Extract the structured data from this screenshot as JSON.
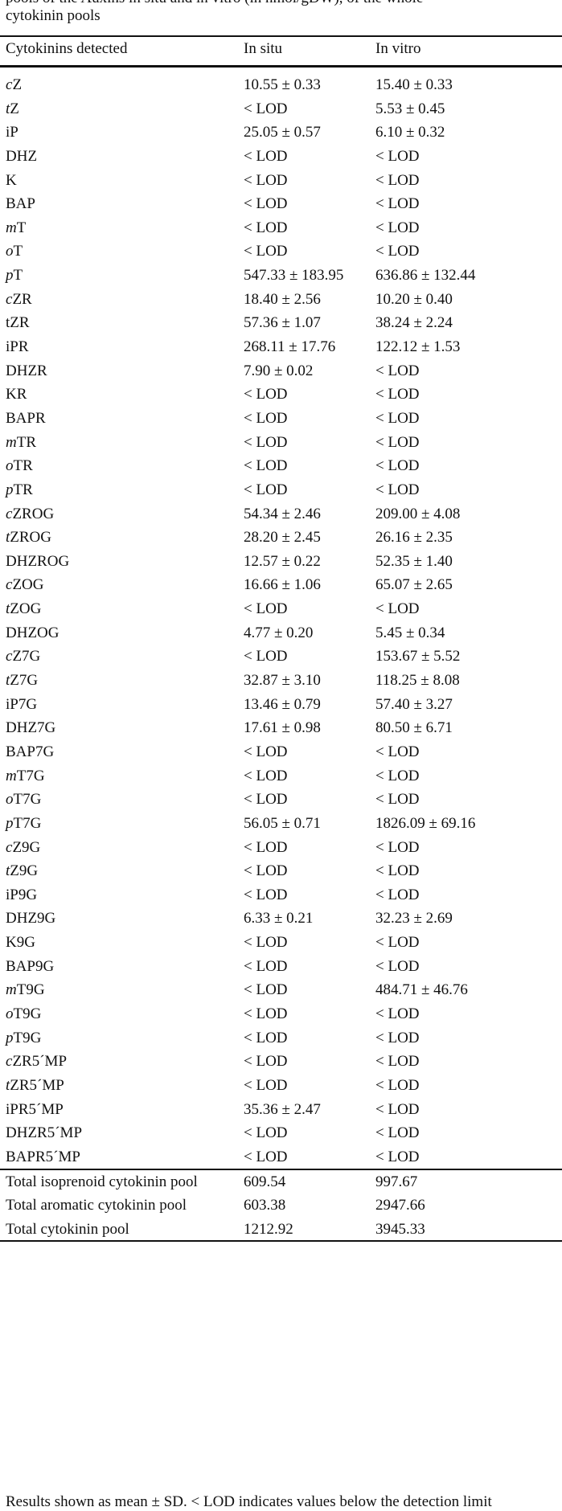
{
  "caption": {
    "line1": "pools of the Auxins in situ and in vitro (in nmol/gDW), of the whole",
    "line2": "cytokinin pools"
  },
  "headers": {
    "compound": "Cytokinins detected",
    "in_situ": "In situ",
    "in_vitro": "In vitro"
  },
  "rows": [
    {
      "prefix": "c",
      "name": "Z",
      "in_situ": "10.55 ± 0.33",
      "in_vitro": "15.40 ± 0.33"
    },
    {
      "prefix": "t",
      "name": "Z",
      "in_situ": "< LOD",
      "in_vitro": "5.53 ± 0.45"
    },
    {
      "prefix": "",
      "name": "iP",
      "in_situ": "25.05 ± 0.57",
      "in_vitro": "6.10 ± 0.32"
    },
    {
      "prefix": "",
      "name": "DHZ",
      "in_situ": "< LOD",
      "in_vitro": "< LOD"
    },
    {
      "prefix": "",
      "name": "K",
      "in_situ": "< LOD",
      "in_vitro": "< LOD"
    },
    {
      "prefix": "",
      "name": "BAP",
      "in_situ": "< LOD",
      "in_vitro": "< LOD"
    },
    {
      "prefix": "m",
      "name": "T",
      "in_situ": "< LOD",
      "in_vitro": "< LOD"
    },
    {
      "prefix": "o",
      "name": "T",
      "in_situ": "< LOD",
      "in_vitro": "< LOD"
    },
    {
      "prefix": "p",
      "name": "T",
      "in_situ": "547.33 ± 183.95",
      "in_vitro": "636.86 ± 132.44"
    },
    {
      "prefix": "c",
      "name": "ZR",
      "in_situ": "18.40 ± 2.56",
      "in_vitro": "10.20 ± 0.40"
    },
    {
      "prefix": "",
      "name": "tZR",
      "in_situ": "57.36 ± 1.07",
      "in_vitro": "38.24 ± 2.24"
    },
    {
      "prefix": "",
      "name": "iPR",
      "in_situ": "268.11 ± 17.76",
      "in_vitro": "122.12 ± 1.53"
    },
    {
      "prefix": "",
      "name": "DHZR",
      "in_situ": "7.90 ± 0.02",
      "in_vitro": "< LOD"
    },
    {
      "prefix": "",
      "name": "KR",
      "in_situ": "< LOD",
      "in_vitro": "< LOD"
    },
    {
      "prefix": "",
      "name": "BAPR",
      "in_situ": "< LOD",
      "in_vitro": "< LOD"
    },
    {
      "prefix": "m",
      "name": "TR",
      "in_situ": "< LOD",
      "in_vitro": "< LOD"
    },
    {
      "prefix": "o",
      "name": "TR",
      "in_situ": "< LOD",
      "in_vitro": "< LOD"
    },
    {
      "prefix": "p",
      "name": "TR",
      "in_situ": "< LOD",
      "in_vitro": "< LOD"
    },
    {
      "prefix": "c",
      "name": "ZROG",
      "in_situ": "54.34 ± 2.46",
      "in_vitro": "209.00 ± 4.08"
    },
    {
      "prefix": "t",
      "name": "ZROG",
      "in_situ": "28.20 ± 2.45",
      "in_vitro": "26.16 ± 2.35"
    },
    {
      "prefix": "",
      "name": "DHZROG",
      "in_situ": "12.57 ± 0.22",
      "in_vitro": "52.35 ± 1.40"
    },
    {
      "prefix": "c",
      "name": "ZOG",
      "in_situ": "16.66 ± 1.06",
      "in_vitro": "65.07 ± 2.65"
    },
    {
      "prefix": "t",
      "name": "ZOG",
      "in_situ": "< LOD",
      "in_vitro": "< LOD"
    },
    {
      "prefix": "",
      "name": "DHZOG",
      "in_situ": "4.77 ± 0.20",
      "in_vitro": "5.45 ± 0.34"
    },
    {
      "prefix": "c",
      "name": "Z7G",
      "in_situ": "< LOD",
      "in_vitro": "153.67 ± 5.52"
    },
    {
      "prefix": "t",
      "name": "Z7G",
      "in_situ": "32.87 ± 3.10",
      "in_vitro": "118.25 ± 8.08"
    },
    {
      "prefix": "",
      "name": "iP7G",
      "in_situ": "13.46 ± 0.79",
      "in_vitro": "57.40 ± 3.27"
    },
    {
      "prefix": "",
      "name": "DHZ7G",
      "in_situ": "17.61 ± 0.98",
      "in_vitro": "80.50 ± 6.71"
    },
    {
      "prefix": "",
      "name": "BAP7G",
      "in_situ": "< LOD",
      "in_vitro": "< LOD"
    },
    {
      "prefix": "m",
      "name": "T7G",
      "in_situ": "< LOD",
      "in_vitro": "< LOD"
    },
    {
      "prefix": "o",
      "name": "T7G",
      "in_situ": "< LOD",
      "in_vitro": "< LOD"
    },
    {
      "prefix": "p",
      "name": "T7G",
      "in_situ": "56.05 ± 0.71",
      "in_vitro": "1826.09 ± 69.16"
    },
    {
      "prefix": "c",
      "name": "Z9G",
      "in_situ": "< LOD",
      "in_vitro": "< LOD"
    },
    {
      "prefix": "t",
      "name": "Z9G",
      "in_situ": "< LOD",
      "in_vitro": "< LOD"
    },
    {
      "prefix": "",
      "name": "iP9G",
      "in_situ": "< LOD",
      "in_vitro": "< LOD"
    },
    {
      "prefix": "",
      "name": "DHZ9G",
      "in_situ": "6.33 ± 0.21",
      "in_vitro": "32.23 ± 2.69"
    },
    {
      "prefix": "",
      "name": "K9G",
      "in_situ": "< LOD",
      "in_vitro": "< LOD"
    },
    {
      "prefix": "",
      "name": "BAP9G",
      "in_situ": "< LOD",
      "in_vitro": "< LOD"
    },
    {
      "prefix": "m",
      "name": "T9G",
      "in_situ": "< LOD",
      "in_vitro": "484.71 ± 46.76"
    },
    {
      "prefix": "o",
      "name": "T9G",
      "in_situ": "< LOD",
      "in_vitro": "< LOD"
    },
    {
      "prefix": "p",
      "name": "T9G",
      "in_situ": "< LOD",
      "in_vitro": "< LOD"
    },
    {
      "prefix": "c",
      "name": "ZR5´MP",
      "in_situ": "< LOD",
      "in_vitro": "< LOD"
    },
    {
      "prefix": "t",
      "name": "ZR5´MP",
      "in_situ": "< LOD",
      "in_vitro": "< LOD"
    },
    {
      "prefix": "",
      "name": "iPR5´MP",
      "in_situ": "35.36 ± 2.47",
      "in_vitro": "< LOD"
    },
    {
      "prefix": "",
      "name": "DHZR5´MP",
      "in_situ": "< LOD",
      "in_vitro": "< LOD"
    },
    {
      "prefix": "",
      "name": "BAPR5´MP",
      "in_situ": "< LOD",
      "in_vitro": "< LOD"
    }
  ],
  "totals": [
    {
      "label": "Total isoprenoid cytokinin pool",
      "in_situ": "609.54",
      "in_vitro": "997.67"
    },
    {
      "label": "Total aromatic cytokinin pool",
      "in_situ": "603.38",
      "in_vitro": "2947.66"
    },
    {
      "label": "Total cytokinin pool",
      "in_situ": "1212.92",
      "in_vitro": "3945.33"
    }
  ],
  "footnote": "Results shown as mean ± SD. < LOD indicates values below the detection limit"
}
